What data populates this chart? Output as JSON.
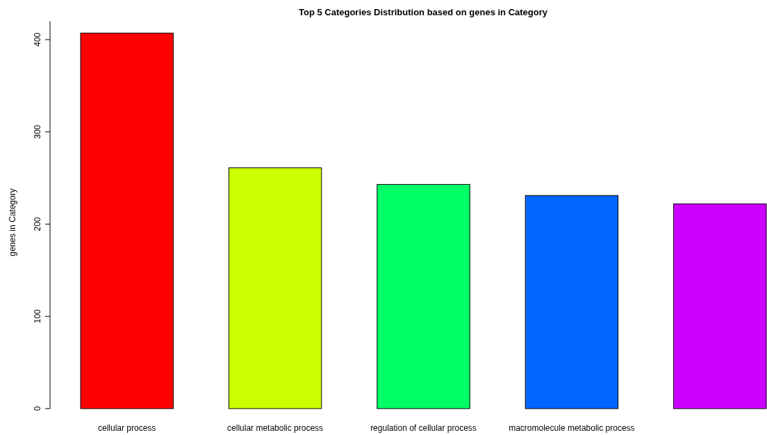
{
  "chart_data": {
    "type": "bar",
    "title": "Top 5 Categories Distribution based on genes in Category",
    "ylabel": "genes in Category",
    "categories": [
      "cellular process",
      "cellular metabolic process",
      "regulation of cellular process",
      "macromolecule metabolic process",
      null
    ],
    "values": [
      407,
      261,
      243,
      231,
      222
    ],
    "colors": [
      "#ff0000",
      "#ccff00",
      "#00ff66",
      "#0066ff",
      "#cc00ff"
    ],
    "ylim": [
      0,
      420
    ],
    "yticks": [
      0,
      100,
      200,
      300,
      400
    ]
  }
}
